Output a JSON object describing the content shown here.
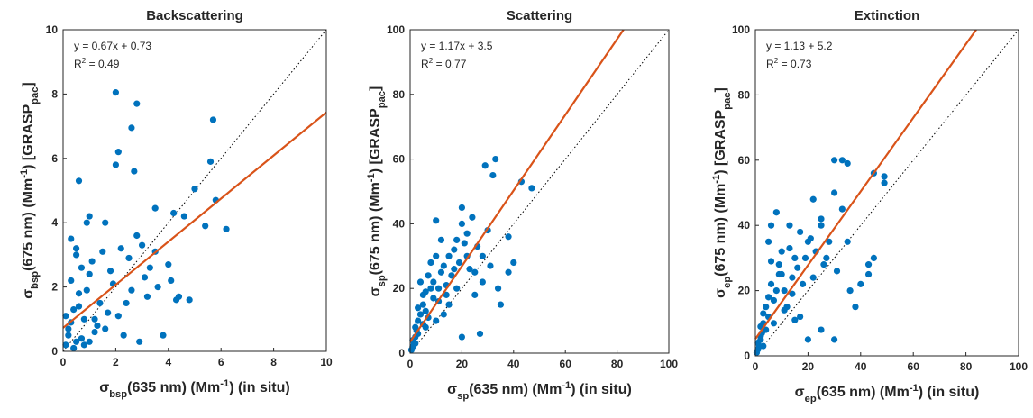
{
  "chart_data": [
    {
      "type": "scatter",
      "title": "Backscattering",
      "xlabel": [
        {
          "text": "σ"
        },
        {
          "sub": "bsp"
        },
        {
          "text": "(635 nm) (Mm"
        },
        {
          "sup": "-1"
        },
        {
          "text": ") (in situ)"
        }
      ],
      "ylabel": [
        {
          "text": "σ"
        },
        {
          "sub": "bsp"
        },
        {
          "text": "(675 nm) (Mm"
        },
        {
          "sup": "-1"
        },
        {
          "text": ") [GRASP"
        },
        {
          "sub": "pac"
        },
        {
          "text": "]"
        }
      ],
      "annotations": [
        [
          {
            "text": "y = 0.67x + 0.73"
          }
        ],
        [
          {
            "text": "R"
          },
          {
            "sup": "2"
          },
          {
            "text": " = 0.49"
          }
        ]
      ],
      "xlim": [
        0,
        10
      ],
      "ylim": [
        0,
        10
      ],
      "xticks": [
        0,
        2,
        4,
        6,
        8,
        10
      ],
      "yticks": [
        0,
        2,
        4,
        6,
        8,
        10
      ],
      "points": {
        "color": "#0072bd",
        "x": [
          2.0,
          2.8,
          5.7,
          2.6,
          5.6,
          2.1,
          2.0,
          0.6,
          2.7,
          5.0,
          4.2,
          5.8,
          3.5,
          6.2,
          5.4,
          1.6,
          1.0,
          4.6,
          0.1,
          0.2,
          0.3,
          0.4,
          0.5,
          0.6,
          0.8,
          1.0,
          1.2,
          1.4,
          0.3,
          0.5,
          0.7,
          0.9,
          1.1,
          1.5,
          1.8,
          2.2,
          2.5,
          3.0,
          3.3,
          3.6,
          4.0,
          4.4,
          4.8,
          1.3,
          1.7,
          2.3,
          2.9,
          3.2,
          3.8,
          0.2,
          0.4,
          0.6,
          0.1,
          0.8,
          1.9,
          2.4,
          2.8,
          3.5,
          4.1,
          0.3,
          1.0,
          1.6,
          2.1,
          0.5,
          0.9,
          1.2,
          2.6,
          3.1,
          4.3,
          0.7
        ],
        "y": [
          8.05,
          7.7,
          7.2,
          6.95,
          5.9,
          6.2,
          5.8,
          5.3,
          5.6,
          5.05,
          4.3,
          4.7,
          4.45,
          3.8,
          3.9,
          4.0,
          4.2,
          4.2,
          0.2,
          0.5,
          0.9,
          1.3,
          0.3,
          1.8,
          1.0,
          2.4,
          0.6,
          1.5,
          2.2,
          3.0,
          0.4,
          1.9,
          2.8,
          3.1,
          2.5,
          3.2,
          2.9,
          3.3,
          2.6,
          2.0,
          2.7,
          1.7,
          1.6,
          0.8,
          1.2,
          0.5,
          0.3,
          1.7,
          0.5,
          0.7,
          0.1,
          1.4,
          1.1,
          0.2,
          2.1,
          1.5,
          3.6,
          3.1,
          2.2,
          3.5,
          0.3,
          0.7,
          1.1,
          3.2,
          4.0,
          1.0,
          1.9,
          2.3,
          1.6,
          2.6
        ]
      },
      "fit": {
        "slope": 0.67,
        "intercept": 0.73,
        "color": "#d95319"
      },
      "identity_line": true
    },
    {
      "type": "scatter",
      "title": "Scattering",
      "xlabel": [
        {
          "text": "σ"
        },
        {
          "sub": "sp"
        },
        {
          "text": "(635 nm) (Mm"
        },
        {
          "sup": "-1"
        },
        {
          "text": ")  (in situ)"
        }
      ],
      "ylabel": [
        {
          "text": "σ"
        },
        {
          "sub": "sp"
        },
        {
          "text": "(675 nm) (Mm"
        },
        {
          "sup": "-1"
        },
        {
          "text": ") [GRASP"
        },
        {
          "sub": "pac"
        },
        {
          "text": "]"
        }
      ],
      "annotations": [
        [
          {
            "text": "y = 1.17x + 3.5"
          }
        ],
        [
          {
            "text": "R"
          },
          {
            "sup": "2"
          },
          {
            "text": " = 0.77"
          }
        ]
      ],
      "xlim": [
        0,
        100
      ],
      "ylim": [
        0,
        100
      ],
      "xticks": [
        0,
        20,
        40,
        60,
        80,
        100
      ],
      "yticks": [
        0,
        20,
        40,
        60,
        80,
        100
      ],
      "points": {
        "color": "#0072bd",
        "x": [
          33,
          29,
          47,
          43,
          32,
          38,
          10,
          20,
          30,
          40,
          38,
          28,
          34,
          35,
          20,
          27,
          15,
          12,
          8,
          5,
          2,
          1,
          3,
          6,
          10,
          18,
          22,
          25,
          15,
          12,
          8,
          4,
          18,
          24,
          20,
          1,
          2,
          3,
          4,
          5,
          6,
          7,
          9,
          11,
          13,
          14,
          16,
          17,
          19,
          21,
          23,
          26,
          28,
          31,
          2,
          3,
          5,
          7,
          9,
          11,
          14,
          17,
          0.5,
          1.5,
          2.5,
          6,
          10,
          13,
          22,
          25
        ],
        "y": [
          60,
          58,
          51,
          53,
          55,
          36,
          41,
          40,
          38,
          28,
          25,
          22,
          20,
          15,
          5,
          6,
          30,
          25,
          20,
          15,
          5,
          2,
          10,
          8,
          10,
          20,
          30,
          25,
          15,
          35,
          28,
          22,
          35,
          42,
          45,
          4,
          8,
          6,
          12,
          18,
          13,
          24,
          17,
          20,
          27,
          18,
          24,
          32,
          28,
          34,
          26,
          33,
          30,
          27,
          3,
          14,
          9,
          11,
          22,
          16,
          21,
          26,
          1,
          3,
          7,
          19,
          30,
          12,
          37,
          18
        ]
      },
      "fit": {
        "slope": 1.17,
        "intercept": 3.5,
        "color": "#d95319"
      },
      "identity_line": true
    },
    {
      "type": "scatter",
      "title": "Extinction",
      "xlabel": [
        {
          "text": "σ"
        },
        {
          "sub": "ep"
        },
        {
          "text": "(635 nm) (Mm"
        },
        {
          "sup": "-1"
        },
        {
          "text": ") (in situ)"
        }
      ],
      "ylabel": [
        {
          "text": "σ"
        },
        {
          "sub": "ep"
        },
        {
          "text": "(675 nm) (Mm"
        },
        {
          "sup": "-1"
        },
        {
          "text": ") [GRASP"
        },
        {
          "sub": "pac"
        },
        {
          "text": "]"
        }
      ],
      "annotations": [
        [
          {
            "text": "y = 1.13 + 5.2"
          }
        ],
        [
          {
            "text": "R"
          },
          {
            "sup": "2"
          },
          {
            "text": " = 0.73"
          }
        ]
      ],
      "xlim": [
        0,
        100
      ],
      "ylim": [
        0,
        100
      ],
      "xticks": [
        0,
        20,
        40,
        60,
        80,
        100
      ],
      "yticks": [
        0,
        20,
        40,
        60,
        80,
        100
      ],
      "points": {
        "color": "#0072bd",
        "x": [
          30,
          33,
          35,
          45,
          49,
          49,
          22,
          30,
          33,
          8,
          25,
          35,
          45,
          43,
          40,
          43,
          38,
          30,
          20,
          25,
          6,
          5,
          10,
          15,
          20,
          2,
          3,
          5,
          8,
          12,
          18,
          27,
          1,
          4,
          1,
          2,
          3,
          4,
          6,
          7,
          9,
          11,
          13,
          14,
          16,
          17,
          19,
          21,
          23,
          26,
          28,
          31,
          2,
          3,
          5,
          7,
          9,
          11,
          14,
          17,
          0.5,
          1.5,
          2.5,
          6,
          10,
          13,
          22,
          25,
          36,
          15
        ],
        "y": [
          60,
          60,
          59,
          56,
          55,
          53,
          48,
          50,
          45,
          44,
          42,
          35,
          30,
          25,
          22,
          28,
          15,
          5,
          5,
          8,
          40,
          35,
          25,
          30,
          35,
          5,
          10,
          18,
          20,
          15,
          22,
          30,
          2,
          8,
          4,
          9,
          13,
          15,
          22,
          17,
          28,
          20,
          33,
          24,
          27,
          38,
          30,
          36,
          32,
          28,
          35,
          26,
          6,
          3,
          12,
          10,
          25,
          14,
          19,
          12,
          1,
          3,
          7,
          29,
          32,
          40,
          24,
          40,
          20,
          11
        ]
      },
      "fit": {
        "slope": 1.13,
        "intercept": 5.2,
        "color": "#d95319"
      },
      "identity_line": true
    }
  ]
}
